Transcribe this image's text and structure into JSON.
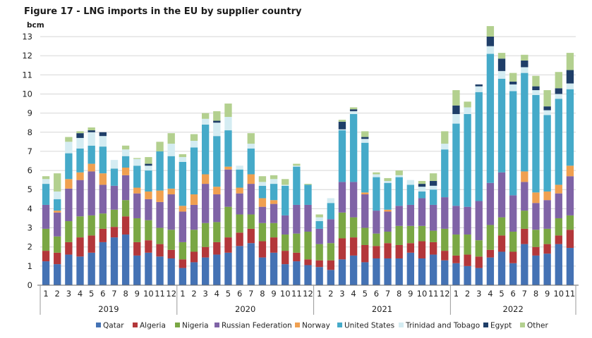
{
  "chart_data": {
    "type": "bar",
    "stacked": true,
    "title": "Figure 17 - LNG imports in the EU by supplier country",
    "ylabel": "bcm",
    "ylim": [
      0,
      13
    ],
    "yticks": [
      0,
      1,
      2,
      3,
      4,
      5,
      6,
      7,
      8,
      9,
      10,
      11,
      12,
      13
    ],
    "grid": "horizontal",
    "legend_position": "bottom",
    "years": [
      {
        "label": "2019",
        "months": 12
      },
      {
        "label": "2020",
        "months": 12
      },
      {
        "label": "2021",
        "months": 12
      },
      {
        "label": "2022",
        "months": 11
      }
    ],
    "categories": [
      "1",
      "2",
      "3",
      "4",
      "5",
      "6",
      "7",
      "8",
      "9",
      "10",
      "11",
      "12",
      "1",
      "2",
      "3",
      "4",
      "5",
      "6",
      "7",
      "8",
      "9",
      "10",
      "11",
      "12",
      "1",
      "2",
      "3",
      "4",
      "5",
      "6",
      "7",
      "8",
      "9",
      "10",
      "11",
      "12",
      "1",
      "2",
      "3",
      "4",
      "5",
      "6",
      "7",
      "8",
      "9",
      "10",
      "11"
    ],
    "series": [
      {
        "name": "Qatar",
        "color": "#4472b4",
        "values": [
          1.25,
          1.1,
          1.6,
          1.5,
          1.7,
          2.25,
          2.5,
          2.65,
          1.55,
          1.7,
          1.5,
          1.4,
          0.9,
          1.2,
          1.45,
          1.6,
          1.7,
          2.05,
          2.2,
          1.45,
          1.7,
          1.1,
          1.25,
          1.05,
          0.95,
          0.8,
          1.35,
          1.55,
          1.2,
          1.4,
          1.4,
          1.4,
          1.7,
          1.4,
          1.6,
          1.3,
          1.15,
          1.0,
          0.9,
          1.45,
          1.75,
          1.15,
          2.15,
          1.55,
          1.65,
          2.15,
          1.95
        ]
      },
      {
        "name": "Algeria",
        "color": "#b3373a",
        "values": [
          0.55,
          0.6,
          0.65,
          1.0,
          0.9,
          0.7,
          0.55,
          0.95,
          0.7,
          0.65,
          0.65,
          0.45,
          0.45,
          0.55,
          0.55,
          0.65,
          0.8,
          0.7,
          0.75,
          0.85,
          0.8,
          0.7,
          0.45,
          0.3,
          0.35,
          0.5,
          1.1,
          0.95,
          0.9,
          0.65,
          0.8,
          0.7,
          0.5,
          0.9,
          0.65,
          0.5,
          0.4,
          0.6,
          0.6,
          0.4,
          0.85,
          0.6,
          0.8,
          0.45,
          0.5,
          0.45,
          0.95
        ]
      },
      {
        "name": "Nigeria",
        "color": "#7aa744",
        "values": [
          1.15,
          0.85,
          1.1,
          1.1,
          1.05,
          0.8,
          0.9,
          0.85,
          1.25,
          1.05,
          0.85,
          1.05,
          0.9,
          1.15,
          1.25,
          1.05,
          1.6,
          0.95,
          0.75,
          0.95,
          0.75,
          0.85,
          1.0,
          1.45,
          0.85,
          0.9,
          1.35,
          1.05,
          0.9,
          0.65,
          0.6,
          1.0,
          0.9,
          0.8,
          0.6,
          1.15,
          1.1,
          1.05,
          0.85,
          1.3,
          0.95,
          1.05,
          0.95,
          0.9,
          0.8,
          0.9,
          0.75
        ]
      },
      {
        "name": "Russian Federation",
        "color": "#7f63a6",
        "values": [
          1.25,
          1.25,
          1.7,
          1.9,
          2.3,
          1.5,
          1.25,
          1.3,
          1.3,
          1.1,
          1.35,
          1.85,
          1.6,
          1.3,
          2.05,
          1.45,
          1.95,
          1.1,
          1.6,
          0.85,
          1.0,
          1.0,
          1.5,
          1.4,
          0.8,
          1.25,
          1.6,
          1.85,
          1.75,
          1.2,
          1.05,
          1.05,
          1.1,
          1.45,
          1.35,
          1.65,
          1.5,
          1.45,
          2.05,
          2.2,
          2.35,
          1.9,
          1.5,
          1.4,
          1.5,
          1.3,
          2.05
        ]
      },
      {
        "name": "Norway",
        "color": "#f0a050",
        "values": [
          0.0,
          0.1,
          0.5,
          0.4,
          0.4,
          0.6,
          0.0,
          0.4,
          0.3,
          0.4,
          0.6,
          0.3,
          0.3,
          0.55,
          0.5,
          0.4,
          0.15,
          0.3,
          0.5,
          0.45,
          0.2,
          0.0,
          0.0,
          0.0,
          0.0,
          0.0,
          0.0,
          0.0,
          0.1,
          0.0,
          0.1,
          0.0,
          0.0,
          0.0,
          0.0,
          0.0,
          0.0,
          0.0,
          0.0,
          0.0,
          0.0,
          0.0,
          0.55,
          0.55,
          0.45,
          0.45,
          0.55
        ]
      },
      {
        "name": "United States",
        "color": "#45aac9",
        "values": [
          1.1,
          0.6,
          1.35,
          1.25,
          0.95,
          1.4,
          0.9,
          0.6,
          1.15,
          1.1,
          2.05,
          1.7,
          2.3,
          2.45,
          2.6,
          2.65,
          1.9,
          0.95,
          1.35,
          0.65,
          0.85,
          1.55,
          2.0,
          1.05,
          0.4,
          0.85,
          2.7,
          3.55,
          2.6,
          1.75,
          1.4,
          1.5,
          1.05,
          0.35,
          0.8,
          2.5,
          4.3,
          4.85,
          5.7,
          6.75,
          4.9,
          5.45,
          5.15,
          5.1,
          4.0,
          4.5,
          4.0
        ]
      },
      {
        "name": "Trinidad and Tobago",
        "color": "#d4ecf2",
        "values": [
          0.25,
          0.4,
          0.6,
          0.55,
          0.7,
          0.55,
          0.45,
          0.35,
          0.35,
          0.25,
          0.0,
          0.65,
          0.25,
          0.35,
          0.3,
          0.7,
          0.7,
          0.2,
          0.25,
          0.2,
          0.25,
          0.05,
          0.05,
          0.0,
          0.2,
          0.25,
          0.05,
          0.15,
          0.2,
          0.15,
          0.1,
          0.1,
          0.25,
          0.25,
          0.2,
          0.3,
          0.5,
          0.35,
          0.3,
          0.4,
          0.4,
          0.35,
          0.3,
          0.25,
          0.25,
          0.25,
          0.3
        ]
      },
      {
        "name": "Egypt",
        "color": "#1f3e68",
        "values": [
          0.0,
          0.0,
          0.0,
          0.25,
          0.1,
          0.2,
          0.0,
          0.0,
          0.0,
          0.1,
          0.0,
          0.0,
          0.0,
          0.0,
          0.0,
          0.1,
          0.0,
          0.0,
          0.0,
          0.0,
          0.0,
          0.0,
          0.0,
          0.0,
          0.0,
          0.0,
          0.4,
          0.1,
          0.1,
          0.0,
          0.0,
          0.0,
          0.0,
          0.15,
          0.25,
          0.0,
          0.45,
          0.0,
          0.1,
          0.5,
          0.65,
          0.15,
          0.35,
          0.2,
          0.2,
          0.3,
          0.7
        ]
      },
      {
        "name": "Other",
        "color": "#b3d08f",
        "values": [
          0.15,
          0.95,
          0.25,
          0.1,
          0.15,
          0.0,
          0.0,
          0.2,
          0.05,
          0.35,
          0.5,
          0.55,
          0.15,
          0.35,
          0.3,
          0.5,
          0.7,
          0.0,
          0.55,
          0.3,
          0.2,
          0.3,
          0.1,
          0.05,
          0.15,
          0.0,
          0.1,
          0.1,
          0.3,
          0.1,
          0.15,
          0.25,
          0.0,
          0.15,
          0.4,
          0.65,
          0.8,
          0.3,
          0.0,
          0.55,
          0.3,
          0.45,
          0.3,
          0.55,
          0.85,
          0.85,
          0.9
        ]
      }
    ]
  }
}
